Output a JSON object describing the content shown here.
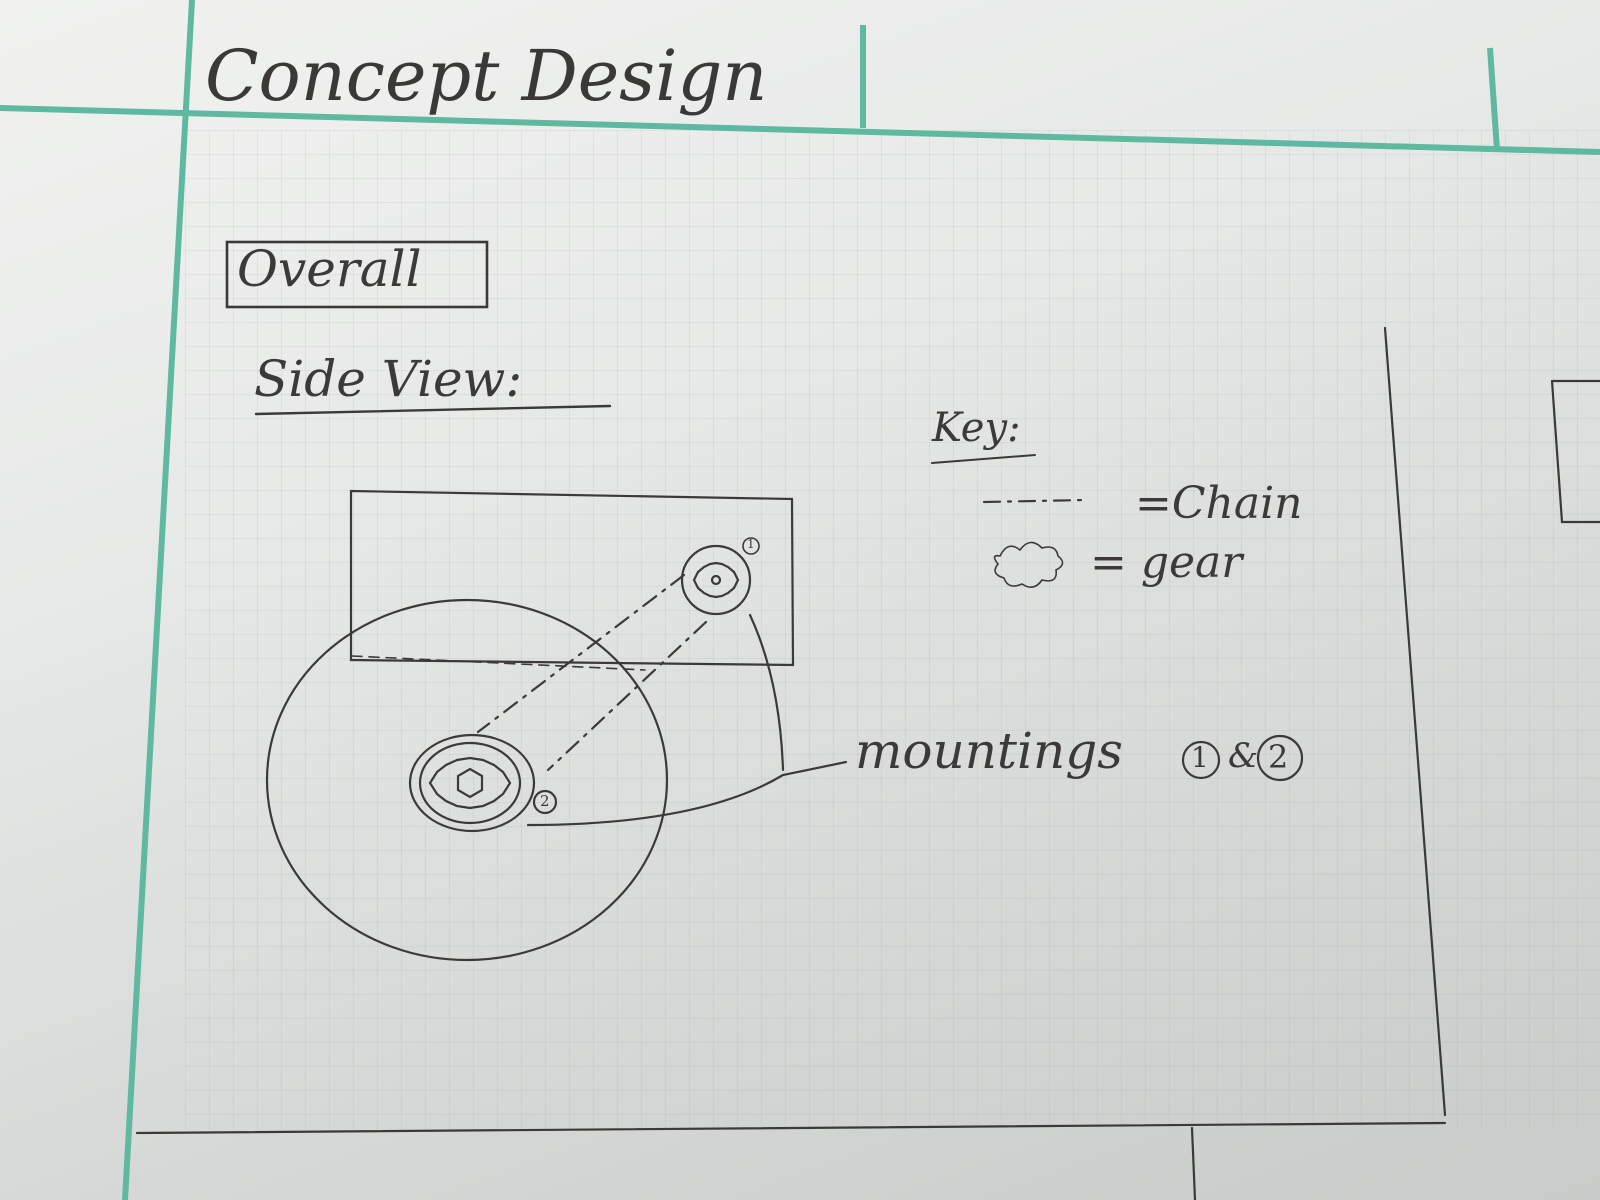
{
  "header": {
    "title": "Concept Design"
  },
  "section": {
    "label": "Overall"
  },
  "view": {
    "title": "Side View:"
  },
  "key": {
    "title": "Key:",
    "chain_label": "=Chain",
    "gear_label": "= gear"
  },
  "callout": {
    "mountings": "mountings",
    "num1": "1",
    "and": "&",
    "num2": "2"
  },
  "markers": {
    "m1": "1",
    "m2": "2"
  },
  "colors": {
    "frame_line": "#5fb8a0",
    "pencil": "#3b3a38"
  }
}
